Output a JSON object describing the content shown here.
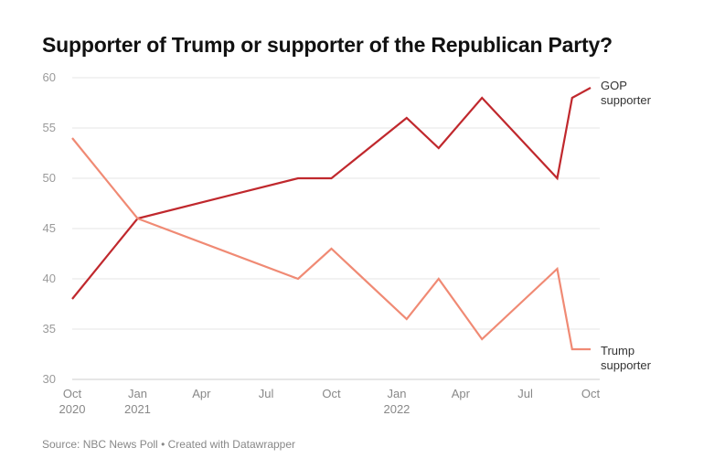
{
  "header": {
    "title": "Supporter of Trump or supporter of the Republican Party?"
  },
  "footer": {
    "source": "Source: NBC News Poll",
    "separator": "•",
    "credit": "Created with Datawrapper"
  },
  "chart_data": {
    "type": "line",
    "title": "Supporter of Trump or supporter of the Republican Party?",
    "xlabel": "",
    "ylabel": "",
    "ylim": [
      30,
      60
    ],
    "yticks": [
      30,
      35,
      40,
      45,
      50,
      55,
      60
    ],
    "xlim": [
      "2020-10-01",
      "2022-10-01"
    ],
    "xticks": [
      {
        "date": "2020-10-01",
        "lines": [
          "Oct",
          "2020"
        ]
      },
      {
        "date": "2021-01-01",
        "lines": [
          "Jan",
          "2021"
        ]
      },
      {
        "date": "2021-04-01",
        "lines": [
          "Apr"
        ]
      },
      {
        "date": "2021-07-01",
        "lines": [
          "Jul"
        ]
      },
      {
        "date": "2021-10-01",
        "lines": [
          "Oct"
        ]
      },
      {
        "date": "2022-01-01",
        "lines": [
          "Jan",
          "2022"
        ]
      },
      {
        "date": "2022-04-01",
        "lines": [
          "Apr"
        ]
      },
      {
        "date": "2022-07-01",
        "lines": [
          "Jul"
        ]
      },
      {
        "date": "2022-10-01",
        "lines": [
          "Oct"
        ]
      }
    ],
    "grid": true,
    "series": [
      {
        "name": "GOP supporter",
        "label_lines": [
          "GOP",
          "supporter"
        ],
        "color": "#c0282d",
        "points": [
          {
            "x": "2020-10-01",
            "y": 38
          },
          {
            "x": "2021-01-01",
            "y": 46
          },
          {
            "x": "2021-08-15",
            "y": 50
          },
          {
            "x": "2021-10-01",
            "y": 50
          },
          {
            "x": "2022-01-15",
            "y": 56
          },
          {
            "x": "2022-03-01",
            "y": 53
          },
          {
            "x": "2022-05-01",
            "y": 58
          },
          {
            "x": "2022-08-15",
            "y": 50
          },
          {
            "x": "2022-09-05",
            "y": 58
          },
          {
            "x": "2022-10-01",
            "y": 59
          }
        ]
      },
      {
        "name": "Trump supporter",
        "label_lines": [
          "Trump",
          "supporter"
        ],
        "color": "#f08a74",
        "points": [
          {
            "x": "2020-10-01",
            "y": 54
          },
          {
            "x": "2021-01-01",
            "y": 46
          },
          {
            "x": "2021-08-15",
            "y": 40
          },
          {
            "x": "2021-10-01",
            "y": 43
          },
          {
            "x": "2022-01-15",
            "y": 36
          },
          {
            "x": "2022-03-01",
            "y": 40
          },
          {
            "x": "2022-05-01",
            "y": 34
          },
          {
            "x": "2022-08-15",
            "y": 41
          },
          {
            "x": "2022-09-05",
            "y": 33
          },
          {
            "x": "2022-10-01",
            "y": 33
          }
        ]
      }
    ]
  }
}
